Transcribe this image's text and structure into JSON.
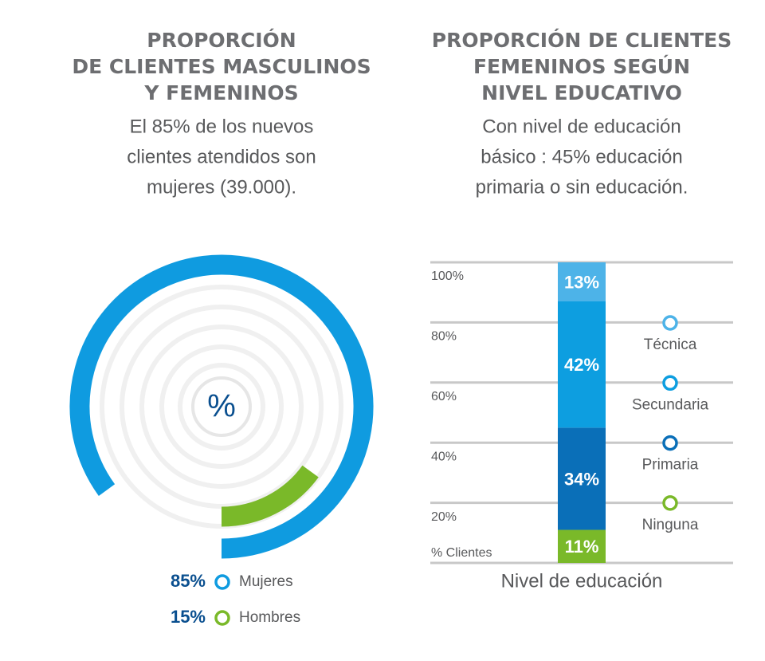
{
  "chart_data": [
    {
      "type": "radial",
      "title": [
        "PROPORCIÓN",
        "DE CLIENTES MASCULINOS",
        "Y FEMENINOS"
      ],
      "subtitle": [
        "El 85% de los nuevos",
        "clientes atendidos son",
        "mujeres (39.000)."
      ],
      "center_label": "%",
      "series": [
        {
          "name": "Mujeres",
          "color": "#0f9be0",
          "values": [
            85
          ],
          "value_labels": [
            "85%"
          ]
        },
        {
          "name": "Hombres",
          "color": "#7ab929",
          "values": [
            15
          ],
          "value_labels": [
            "15%"
          ]
        }
      ]
    },
    {
      "type": "stacked_bar",
      "title": [
        "PROPORCIÓN DE CLIENTES",
        "FEMENINOS SEGÚN",
        "NIVEL EDUCATIVO"
      ],
      "subtitle": [
        "Con nivel de educación",
        "básico : 45% educación",
        "primaria o sin educación."
      ],
      "y_label": "% Clientes",
      "x_label": "Nivel de educación",
      "ylim": [
        0,
        100
      ],
      "yticks": [
        {
          "value": 20,
          "label": "20%"
        },
        {
          "value": 40,
          "label": "40%"
        },
        {
          "value": 60,
          "label": "60%"
        },
        {
          "value": 80,
          "label": "80%"
        },
        {
          "value": 100,
          "label": "100%"
        }
      ],
      "grid": true,
      "series": [
        {
          "name": "Ninguna",
          "color": "#7ab929",
          "values": [
            11
          ],
          "value_labels": [
            "11%"
          ]
        },
        {
          "name": "Primaria",
          "color": "#0a6fb8",
          "values": [
            34
          ],
          "value_labels": [
            "34%"
          ]
        },
        {
          "name": "Secundaria",
          "color": "#0d9ee0",
          "values": [
            42
          ],
          "value_labels": [
            "42%"
          ]
        },
        {
          "name": "Técnica",
          "color": "#4db3e8",
          "values": [
            13
          ],
          "value_labels": [
            "13%"
          ]
        }
      ]
    }
  ]
}
